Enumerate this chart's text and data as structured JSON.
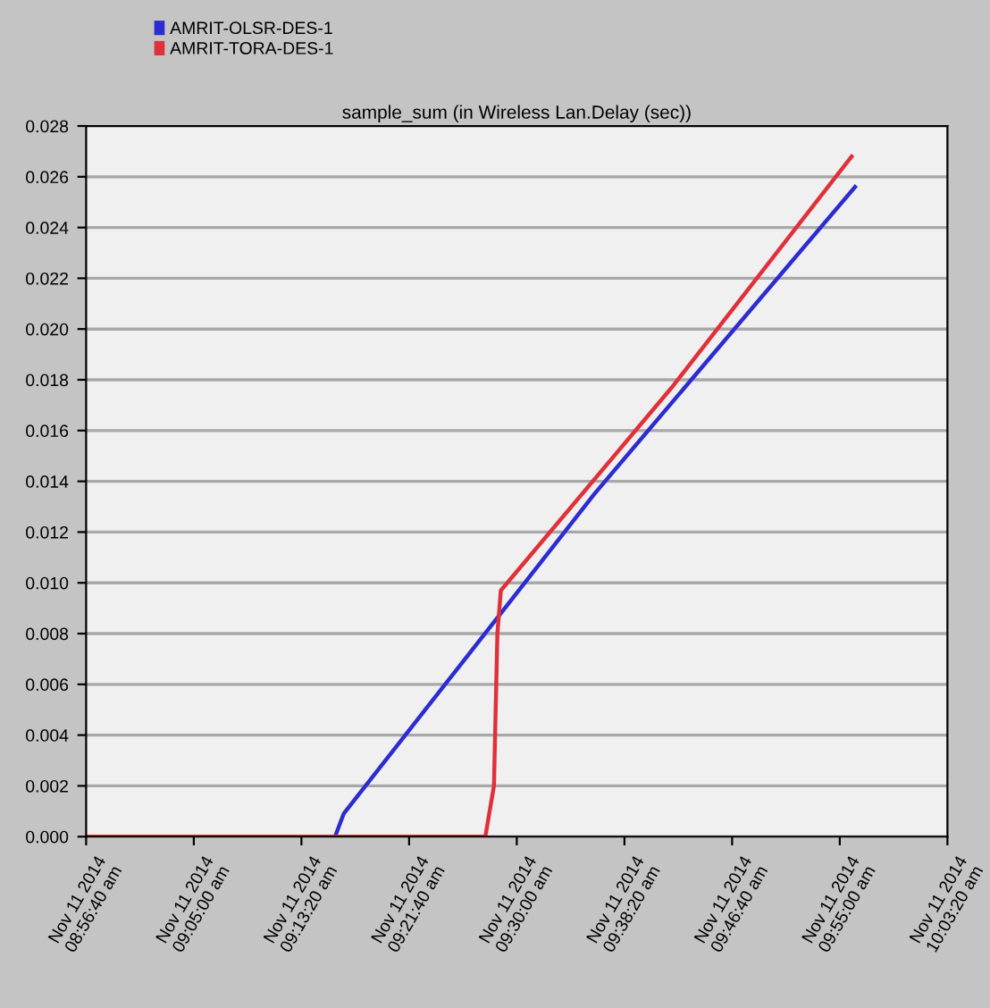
{
  "chart_data": {
    "type": "line",
    "title": "sample_sum (in Wireless Lan.Delay (sec))",
    "series": [
      {
        "name": "AMRIT-OLSR-DES-1",
        "color": "#2c2cd0",
        "x": [
          "2014-11-11T08:56:40",
          "2014-11-11T09:15:56",
          "2014-11-11T09:16:36",
          "2014-11-11T09:36:00",
          "2014-11-11T09:56:11"
        ],
        "values": [
          0,
          0,
          0.0009,
          0.0135,
          0.0256
        ]
      },
      {
        "name": "AMRIT-TORA-DES-1",
        "color": "#e0303a",
        "x": [
          "2014-11-11T08:56:40",
          "2014-11-11T09:15:56",
          "2014-11-11T09:27:34",
          "2014-11-11T09:28:14",
          "2014-11-11T09:28:30",
          "2014-11-11T09:28:46",
          "2014-11-11T09:42:00",
          "2014-11-11T09:55:55"
        ],
        "values": [
          0,
          0,
          0,
          0.002,
          0.008,
          0.0097,
          0.0177,
          0.0268
        ]
      }
    ],
    "xlim": [
      "2014-11-11T08:56:40",
      "2014-11-11T10:03:20"
    ],
    "xticks": [
      {
        "value": "2014-11-11T08:56:40",
        "label": "Nov 11 2014\n08:56:40 am"
      },
      {
        "value": "2014-11-11T09:05:00",
        "label": "Nov 11 2014\n09:05:00 am"
      },
      {
        "value": "2014-11-11T09:13:20",
        "label": "Nov 11 2014\n09:13:20 am"
      },
      {
        "value": "2014-11-11T09:21:40",
        "label": "Nov 11 2014\n09:21:40 am"
      },
      {
        "value": "2014-11-11T09:30:00",
        "label": "Nov 11 2014\n09:30:00 am"
      },
      {
        "value": "2014-11-11T09:38:20",
        "label": "Nov 11 2014\n09:38:20 am"
      },
      {
        "value": "2014-11-11T09:46:40",
        "label": "Nov 11 2014\n09:46:40 am"
      },
      {
        "value": "2014-11-11T09:55:00",
        "label": "Nov 11 2014\n09:55:00 am"
      },
      {
        "value": "2014-11-11T10:03:20",
        "label": "Nov 11 2014\n10:03:20 am"
      }
    ],
    "ylim": [
      0,
      0.028
    ],
    "yticks": [
      {
        "value": 0,
        "label": "0.000"
      },
      {
        "value": 0.002,
        "label": "0.002"
      },
      {
        "value": 0.004,
        "label": "0.004"
      },
      {
        "value": 0.006,
        "label": "0.006"
      },
      {
        "value": 0.008,
        "label": "0.008"
      },
      {
        "value": 0.01,
        "label": "0.010"
      },
      {
        "value": 0.012,
        "label": "0.012"
      },
      {
        "value": 0.014,
        "label": "0.014"
      },
      {
        "value": 0.016,
        "label": "0.016"
      },
      {
        "value": 0.018,
        "label": "0.018"
      },
      {
        "value": 0.02,
        "label": "0.020"
      },
      {
        "value": 0.022,
        "label": "0.022"
      },
      {
        "value": 0.024,
        "label": "0.024"
      },
      {
        "value": 0.026,
        "label": "0.026"
      },
      {
        "value": 0.028,
        "label": "0.028"
      }
    ],
    "grid": "y",
    "legend": "top left",
    "marker": "none",
    "line_style": "solid"
  }
}
